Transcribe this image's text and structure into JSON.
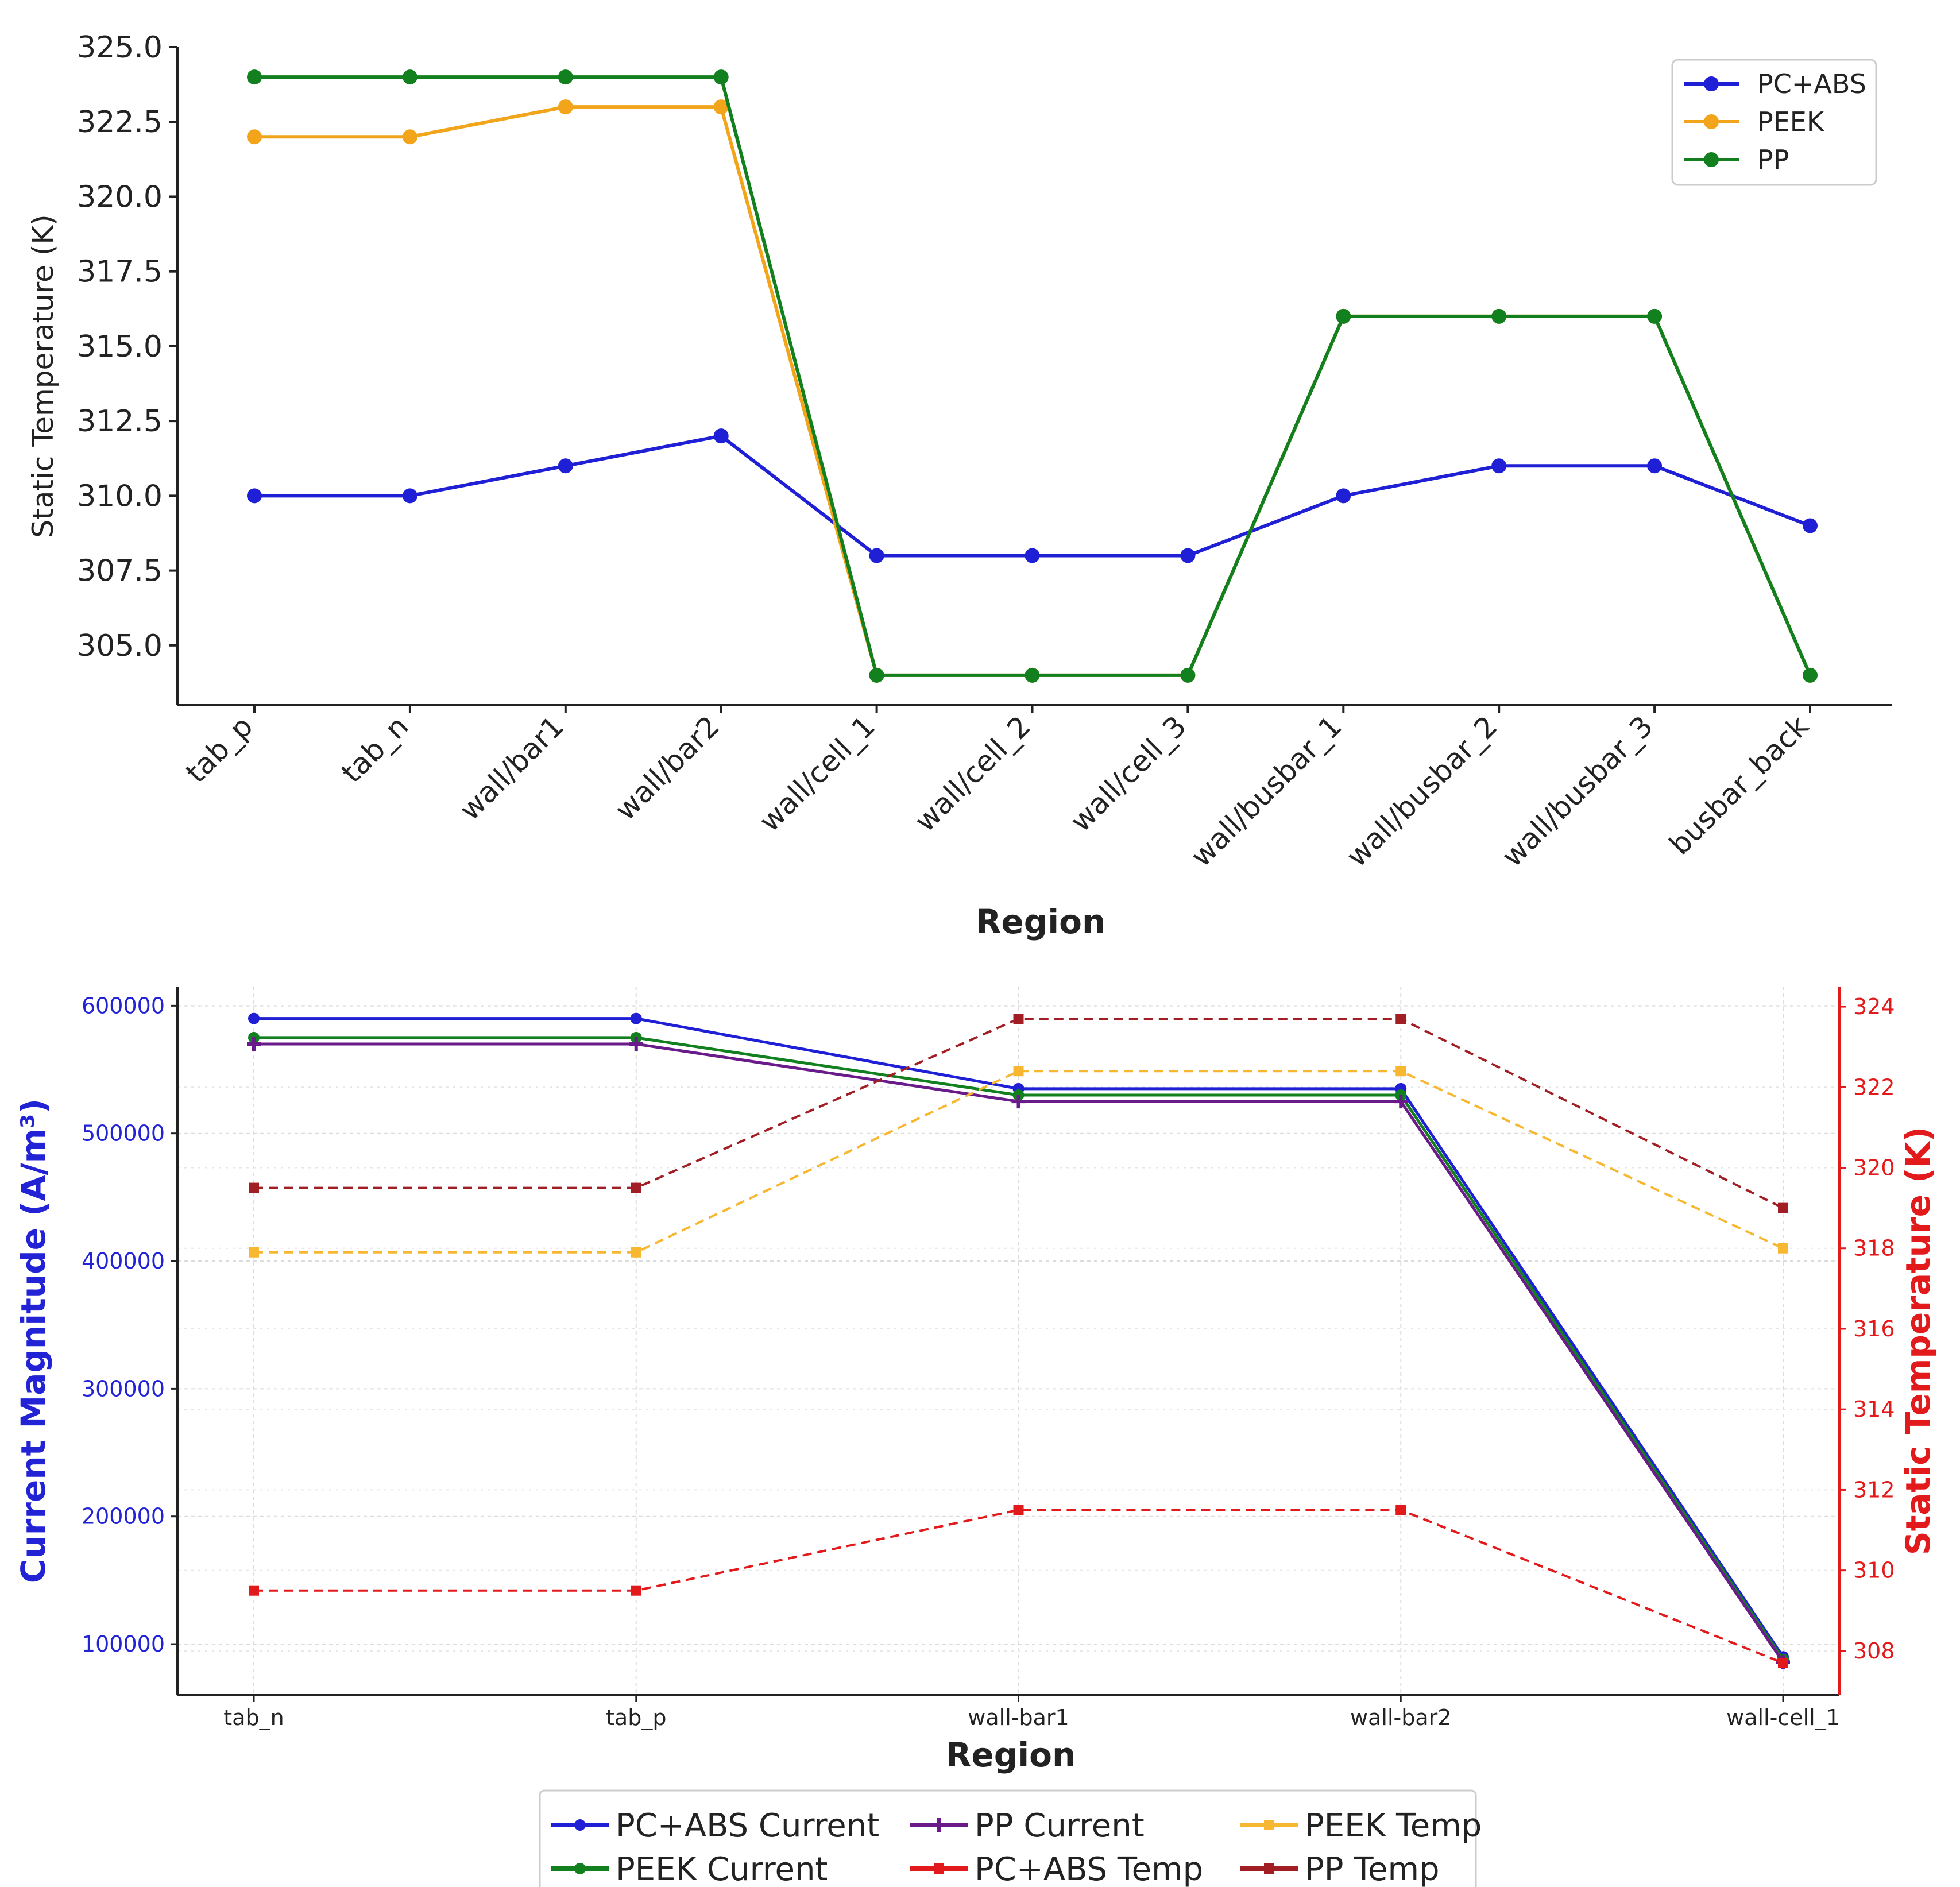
{
  "chart_data": [
    {
      "type": "line",
      "title": "",
      "xlabel": "Region",
      "ylabel": "Static Temperature (K)",
      "categories": [
        "tab_p",
        "tab_n",
        "wall/bar1",
        "wall/bar2",
        "wall/cell_1",
        "wall/cell_2",
        "wall/cell_3",
        "wall/busbar_1",
        "wall/busbar_2",
        "wall/busbar_3",
        "busbar_back"
      ],
      "ylim": [
        303.0,
        325.0
      ],
      "yticks": [
        305.0,
        307.5,
        310.0,
        312.5,
        315.0,
        317.5,
        320.0,
        322.5,
        325.0
      ],
      "ytick_labels": [
        "305.0",
        "307.5",
        "310.0",
        "312.5",
        "315.0",
        "317.5",
        "320.0",
        "322.5",
        "325.0"
      ],
      "grid": false,
      "legend_position": "top-right",
      "series": [
        {
          "name": "PC+ABS",
          "color": "#1f1fd6",
          "marker": "circle",
          "values": [
            310,
            310,
            311,
            312,
            308,
            308,
            308,
            310,
            311,
            311,
            309
          ]
        },
        {
          "name": "PEEK",
          "color": "#f2a51a",
          "marker": "circle",
          "values": [
            322,
            322,
            323,
            323,
            304,
            304,
            304,
            316,
            316,
            316,
            304
          ]
        },
        {
          "name": "PP",
          "color": "#13801f",
          "marker": "circle",
          "values": [
            324,
            324,
            324,
            324,
            304,
            304,
            304,
            316,
            316,
            316,
            304
          ]
        }
      ]
    },
    {
      "type": "line",
      "title": "",
      "xlabel": "Region",
      "ylabel_left": "Current Magnitude (A/m³)",
      "ylabel_right": "Static Temperature (K)",
      "categories": [
        "tab_n",
        "tab_p",
        "wall-bar1",
        "wall-bar2",
        "wall-cell_1"
      ],
      "ylim_left": [
        60000,
        615000
      ],
      "yticks_left": [
        100000,
        200000,
        300000,
        400000,
        500000,
        600000
      ],
      "ytick_labels_left": [
        "100000",
        "200000",
        "300000",
        "400000",
        "500000",
        "600000"
      ],
      "ylim_right": [
        306.9,
        324.5
      ],
      "yticks_right": [
        308,
        310,
        312,
        314,
        316,
        318,
        320,
        322,
        324
      ],
      "ytick_labels_right": [
        "308",
        "310",
        "312",
        "314",
        "316",
        "318",
        "320",
        "322",
        "324"
      ],
      "grid": true,
      "legend_position": "bottom-center",
      "series": [
        {
          "name": "PC+ABS Current",
          "axis": "left",
          "color": "#1f1fd6",
          "style": "solid",
          "marker": "circle",
          "values": [
            590000,
            590000,
            535000,
            535000,
            90000
          ]
        },
        {
          "name": "PEEK Current",
          "axis": "left",
          "color": "#13801f",
          "style": "solid",
          "marker": "circle",
          "values": [
            575000,
            575000,
            530000,
            530000,
            88000
          ]
        },
        {
          "name": "PP Current",
          "axis": "left",
          "color": "#6a1b8a",
          "style": "solid",
          "marker": "plus",
          "values": [
            570000,
            570000,
            525000,
            525000,
            86000
          ]
        },
        {
          "name": "PC+ABS Temp",
          "axis": "right",
          "color": "#e31a1c",
          "style": "dashed",
          "marker": "square",
          "values": [
            309.5,
            309.5,
            311.5,
            311.5,
            307.7
          ]
        },
        {
          "name": "PEEK Temp",
          "axis": "right",
          "color": "#f7b731",
          "style": "dashed",
          "marker": "square",
          "values": [
            317.9,
            317.9,
            322.4,
            322.4,
            318.0
          ]
        },
        {
          "name": "PP Temp",
          "axis": "right",
          "color": "#a11f24",
          "style": "dashed",
          "marker": "square",
          "values": [
            319.5,
            319.5,
            323.7,
            323.7,
            319.0
          ]
        }
      ]
    }
  ]
}
